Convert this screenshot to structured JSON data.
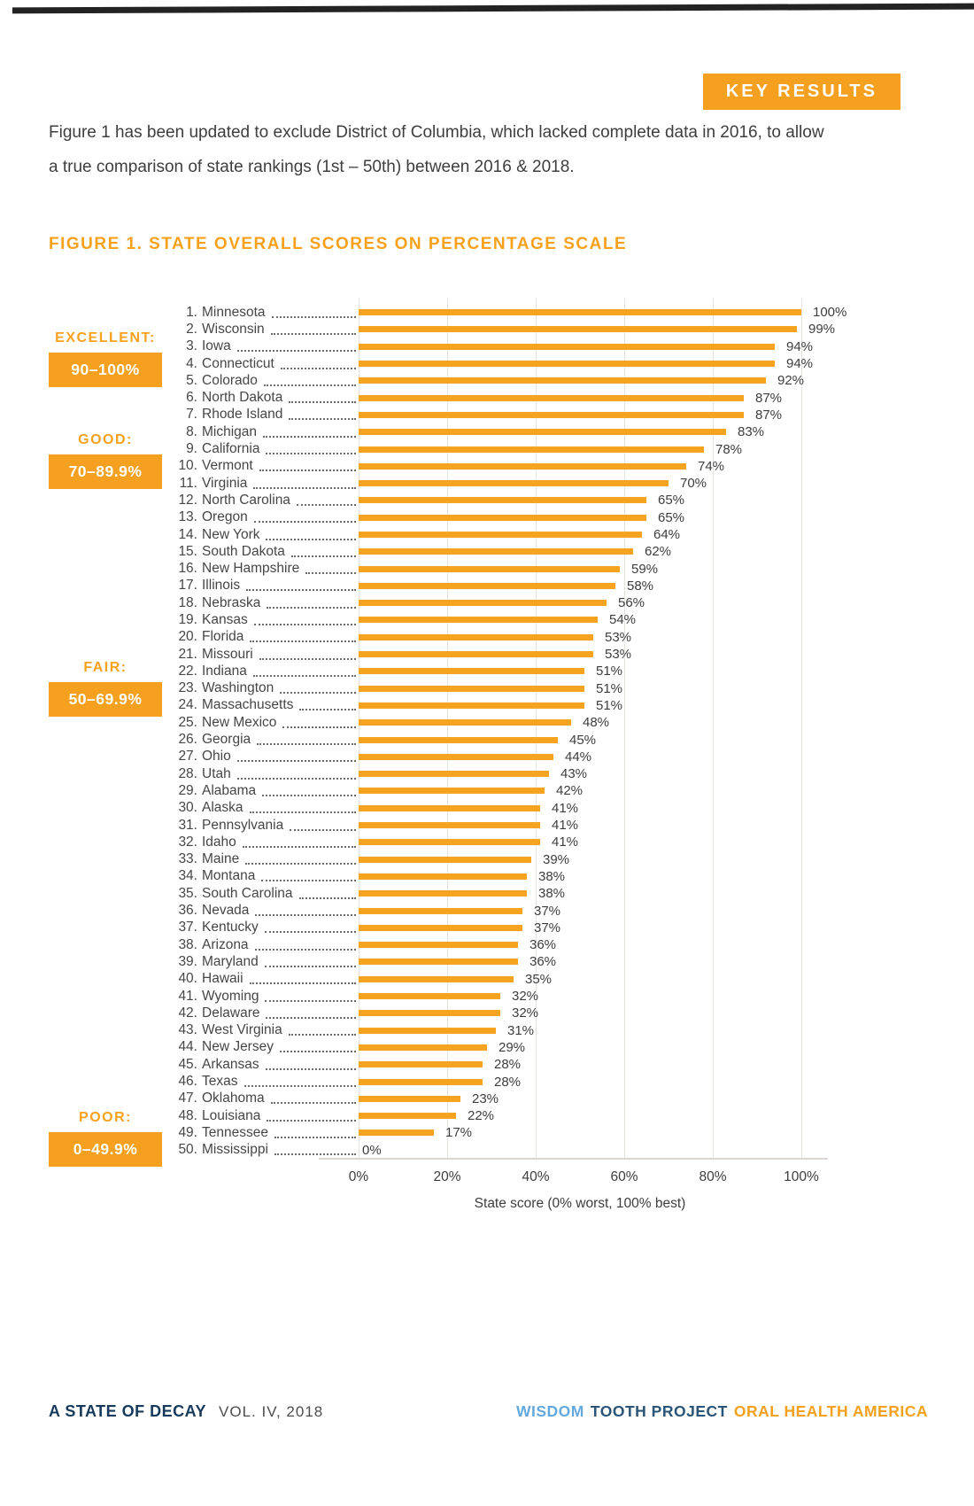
{
  "header": {
    "key_results_label": "KEY RESULTS",
    "intro": "Figure 1 has been updated to exclude District of Columbia, which lacked complete data in 2016, to allow a true comparison of state rankings (1st – 50th) between 2016 & 2018.",
    "figure_title": "FIGURE 1. STATE OVERALL SCORES ON PERCENTAGE SCALE"
  },
  "chart_data": {
    "type": "bar",
    "orientation": "horizontal",
    "title": "FIGURE 1. STATE OVERALL SCORES ON PERCENTAGE SCALE",
    "xlabel": "State score (0% worst, 100% best)",
    "xlim": [
      0,
      100
    ],
    "x_ticks": [
      "0%",
      "20%",
      "40%",
      "60%",
      "80%",
      "100%"
    ],
    "grid": "vertical-light",
    "bar_color": "#F6A41F",
    "rating_bands": [
      {
        "label": "EXCELLENT:",
        "range": "90–100%"
      },
      {
        "label": "GOOD:",
        "range": "70–89.9%"
      },
      {
        "label": "FAIR:",
        "range": "50–69.9%"
      },
      {
        "label": "POOR:",
        "range": "0–49.9%"
      }
    ],
    "categories": [
      "Minnesota",
      "Wisconsin",
      "Iowa",
      "Connecticut",
      "Colorado",
      "North Dakota",
      "Rhode Island",
      "Michigan",
      "California",
      "Vermont",
      "Virginia",
      "North Carolina",
      "Oregon",
      "New York",
      "South Dakota",
      "New Hampshire",
      "Illinois",
      "Nebraska",
      "Kansas",
      "Florida",
      "Missouri",
      "Indiana",
      "Washington",
      "Massachusetts",
      "New Mexico",
      "Georgia",
      "Ohio",
      "Utah",
      "Alabama",
      "Alaska",
      "Pennsylvania",
      "Idaho",
      "Maine",
      "Montana",
      "South Carolina",
      "Nevada",
      "Kentucky",
      "Arizona",
      "Maryland",
      "Hawaii",
      "Wyoming",
      "Delaware",
      "West Virginia",
      "New Jersey",
      "Arkansas",
      "Texas",
      "Oklahoma",
      "Louisiana",
      "Tennessee",
      "Mississippi"
    ],
    "values": [
      100,
      99,
      94,
      94,
      92,
      87,
      87,
      83,
      78,
      74,
      70,
      65,
      65,
      64,
      62,
      59,
      58,
      56,
      54,
      53,
      53,
      51,
      51,
      51,
      48,
      45,
      44,
      43,
      42,
      41,
      41,
      41,
      39,
      38,
      38,
      37,
      37,
      36,
      36,
      35,
      32,
      32,
      31,
      29,
      28,
      28,
      23,
      22,
      17,
      0
    ],
    "states": [
      {
        "rank": "1.",
        "name": "Minnesota",
        "value": 100,
        "label": "100%"
      },
      {
        "rank": "2.",
        "name": "Wisconsin",
        "value": 99,
        "label": "99%"
      },
      {
        "rank": "3.",
        "name": "Iowa",
        "value": 94,
        "label": "94%"
      },
      {
        "rank": "4.",
        "name": "Connecticut",
        "value": 94,
        "label": "94%"
      },
      {
        "rank": "5.",
        "name": "Colorado",
        "value": 92,
        "label": "92%"
      },
      {
        "rank": "6.",
        "name": "North Dakota",
        "value": 87,
        "label": "87%"
      },
      {
        "rank": "7.",
        "name": "Rhode Island",
        "value": 87,
        "label": "87%"
      },
      {
        "rank": "8.",
        "name": "Michigan",
        "value": 83,
        "label": "83%"
      },
      {
        "rank": "9.",
        "name": "California",
        "value": 78,
        "label": "78%"
      },
      {
        "rank": "10.",
        "name": "Vermont",
        "value": 74,
        "label": "74%"
      },
      {
        "rank": "11.",
        "name": "Virginia",
        "value": 70,
        "label": "70%"
      },
      {
        "rank": "12.",
        "name": "North Carolina",
        "value": 65,
        "label": "65%"
      },
      {
        "rank": "13.",
        "name": "Oregon",
        "value": 65,
        "label": "65%"
      },
      {
        "rank": "14.",
        "name": "New York",
        "value": 64,
        "label": "64%"
      },
      {
        "rank": "15.",
        "name": "South Dakota",
        "value": 62,
        "label": "62%"
      },
      {
        "rank": "16.",
        "name": "New Hampshire",
        "value": 59,
        "label": "59%"
      },
      {
        "rank": "17.",
        "name": "Illinois",
        "value": 58,
        "label": "58%"
      },
      {
        "rank": "18.",
        "name": "Nebraska",
        "value": 56,
        "label": "56%"
      },
      {
        "rank": "19.",
        "name": "Kansas",
        "value": 54,
        "label": "54%"
      },
      {
        "rank": "20.",
        "name": "Florida",
        "value": 53,
        "label": "53%"
      },
      {
        "rank": "21.",
        "name": "Missouri",
        "value": 53,
        "label": "53%"
      },
      {
        "rank": "22.",
        "name": "Indiana",
        "value": 51,
        "label": "51%"
      },
      {
        "rank": "23.",
        "name": "Washington",
        "value": 51,
        "label": "51%"
      },
      {
        "rank": "24.",
        "name": "Massachusetts",
        "value": 51,
        "label": "51%"
      },
      {
        "rank": "25.",
        "name": "New Mexico",
        "value": 48,
        "label": "48%"
      },
      {
        "rank": "26.",
        "name": "Georgia",
        "value": 45,
        "label": "45%"
      },
      {
        "rank": "27.",
        "name": "Ohio",
        "value": 44,
        "label": "44%"
      },
      {
        "rank": "28.",
        "name": "Utah",
        "value": 43,
        "label": "43%"
      },
      {
        "rank": "29.",
        "name": "Alabama",
        "value": 42,
        "label": "42%"
      },
      {
        "rank": "30.",
        "name": "Alaska",
        "value": 41,
        "label": "41%"
      },
      {
        "rank": "31.",
        "name": "Pennsylvania",
        "value": 41,
        "label": "41%"
      },
      {
        "rank": "32.",
        "name": "Idaho",
        "value": 41,
        "label": "41%"
      },
      {
        "rank": "33.",
        "name": "Maine",
        "value": 39,
        "label": "39%"
      },
      {
        "rank": "34.",
        "name": "Montana",
        "value": 38,
        "label": "38%"
      },
      {
        "rank": "35.",
        "name": "South Carolina",
        "value": 38,
        "label": "38%"
      },
      {
        "rank": "36.",
        "name": "Nevada",
        "value": 37,
        "label": "37%"
      },
      {
        "rank": "37.",
        "name": "Kentucky",
        "value": 37,
        "label": "37%"
      },
      {
        "rank": "38.",
        "name": "Arizona",
        "value": 36,
        "label": "36%"
      },
      {
        "rank": "39.",
        "name": "Maryland",
        "value": 36,
        "label": "36%"
      },
      {
        "rank": "40.",
        "name": "Hawaii",
        "value": 35,
        "label": "35%"
      },
      {
        "rank": "41.",
        "name": "Wyoming",
        "value": 32,
        "label": "32%"
      },
      {
        "rank": "42.",
        "name": "Delaware",
        "value": 32,
        "label": "32%"
      },
      {
        "rank": "43.",
        "name": "West Virginia",
        "value": 31,
        "label": "31%"
      },
      {
        "rank": "44.",
        "name": "New Jersey",
        "value": 29,
        "label": "29%"
      },
      {
        "rank": "45.",
        "name": "Arkansas",
        "value": 28,
        "label": "28%"
      },
      {
        "rank": "46.",
        "name": "Texas",
        "value": 28,
        "label": "28%"
      },
      {
        "rank": "47.",
        "name": "Oklahoma",
        "value": 23,
        "label": "23%"
      },
      {
        "rank": "48.",
        "name": "Louisiana",
        "value": 22,
        "label": "22%"
      },
      {
        "rank": "49.",
        "name": "Tennessee",
        "value": 17,
        "label": "17%"
      },
      {
        "rank": "50.",
        "name": "Mississippi",
        "value": 0,
        "label": "0%"
      }
    ]
  },
  "footer": {
    "left_title": "A STATE OF DECAY",
    "left_sub": "VOL. IV, 2018",
    "right_part1": "WISDOM",
    "right_part2": "TOOTH PROJECT",
    "right_part3": "ORAL HEALTH AMERICA"
  }
}
